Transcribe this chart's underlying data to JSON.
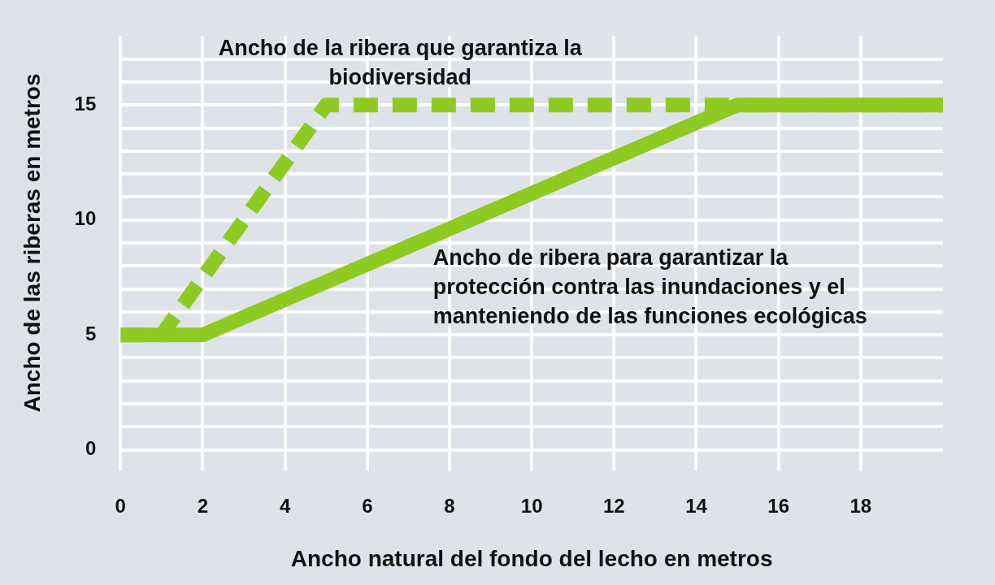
{
  "chart_data": {
    "type": "line",
    "xlabel": "Ancho natural del fondo del lecho en metros",
    "ylabel": "Ancho de las riberas en metros",
    "xlim": [
      0,
      20
    ],
    "xticks": [
      0,
      2,
      4,
      6,
      8,
      10,
      12,
      14,
      16,
      18
    ],
    "ylim": [
      0,
      18
    ],
    "yticks": [
      0,
      {
        "value": 1,
        "label": null
      },
      {
        "value": 2,
        "label": null
      },
      {
        "value": 3,
        "label": null
      },
      {
        "value": 4,
        "label": null
      },
      5,
      {
        "value": 6,
        "label": null
      },
      {
        "value": 7,
        "label": null
      },
      {
        "value": 8,
        "label": null
      },
      {
        "value": 9,
        "label": null
      },
      10,
      {
        "value": 11,
        "label": null
      },
      {
        "value": 12,
        "label": null
      },
      {
        "value": 13,
        "label": null
      },
      {
        "value": 14,
        "label": null
      },
      15,
      {
        "value": 16,
        "label": null
      },
      {
        "value": 17,
        "label": null
      }
    ],
    "grid": true,
    "legend": false,
    "marker": "none",
    "series": [
      {
        "name": "Ancho de la ribera que garantiza la biodiversidad",
        "color": "#8fca22",
        "line_style": "dashed",
        "x": [
          0,
          1,
          5,
          20
        ],
        "values": [
          5,
          5,
          15,
          15
        ]
      },
      {
        "name": "Ancho de ribera para garantizar la protección contra las inundaciones y el manteniendo de las funciones ecológicas",
        "color": "#8fca22",
        "line_style": "solid",
        "x": [
          0,
          2,
          15,
          20
        ],
        "values": [
          5,
          5,
          15,
          15
        ]
      }
    ]
  }
}
